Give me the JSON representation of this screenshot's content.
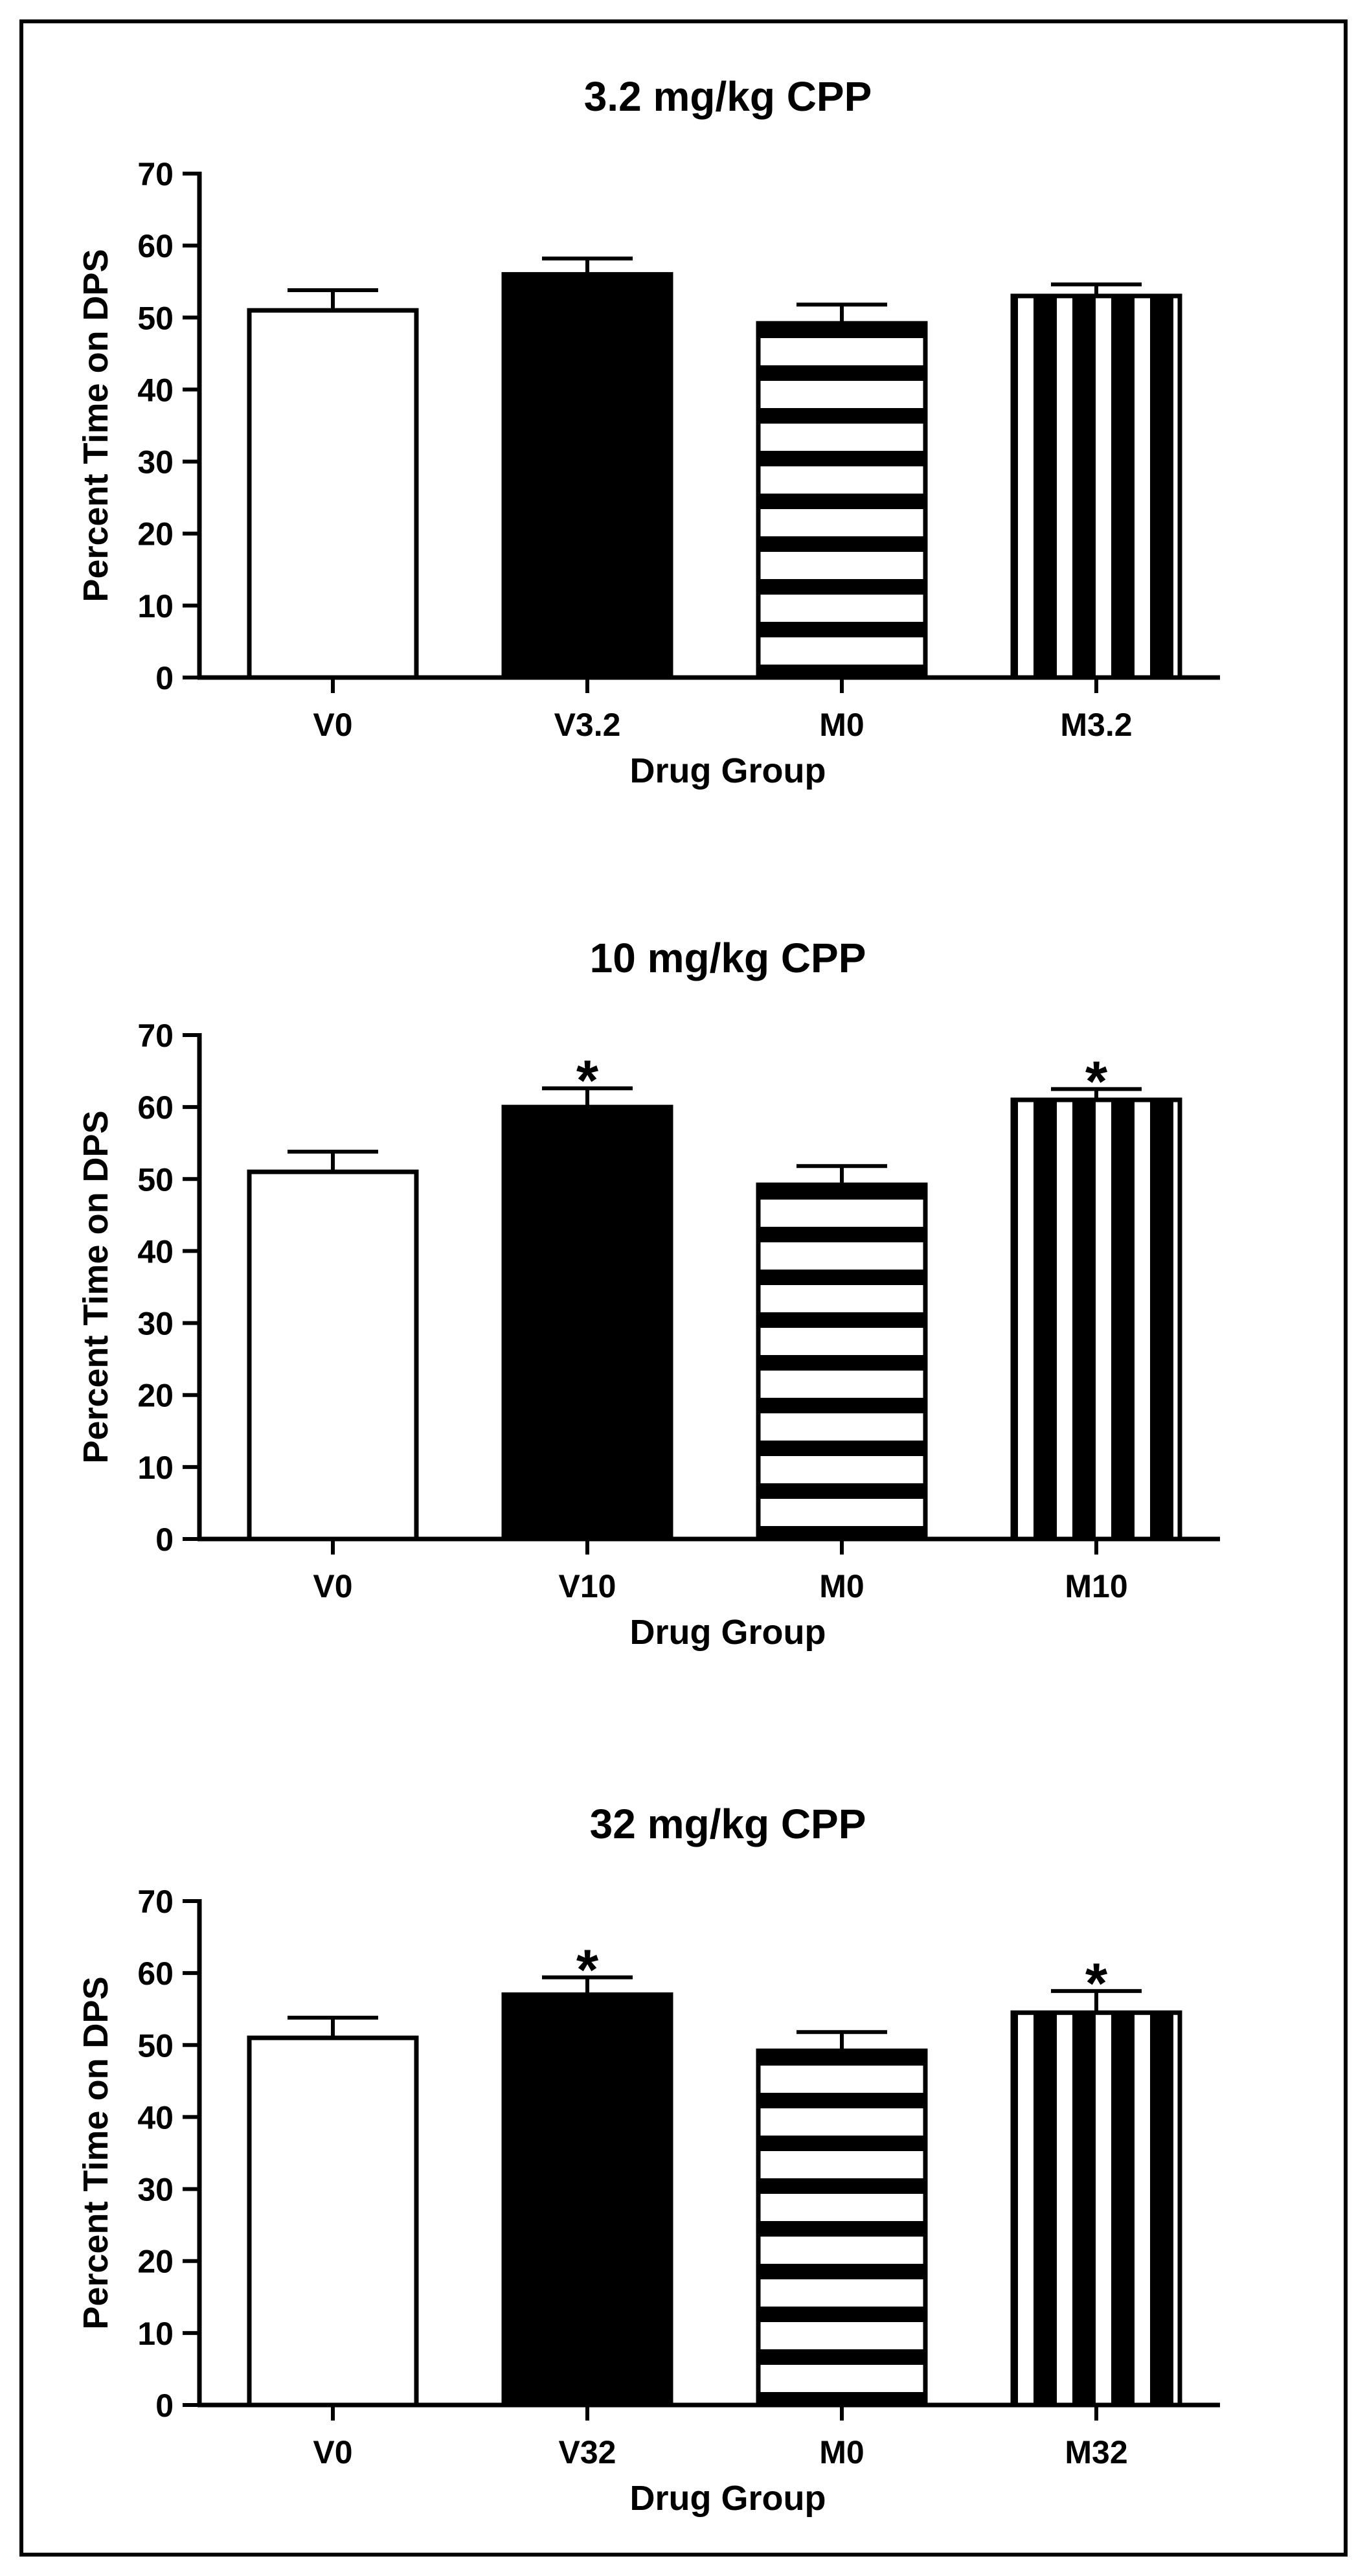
{
  "chart_data": [
    {
      "type": "bar",
      "title": "3.2 mg/kg CPP",
      "xlabel": "Drug Group",
      "ylabel": "Percent Time on DPS",
      "ylim": [
        0,
        70
      ],
      "yticks": [
        0,
        10,
        20,
        30,
        40,
        50,
        60,
        70
      ],
      "categories": [
        "V0",
        "V3.2",
        "M0",
        "M3.2"
      ],
      "values": [
        51,
        56,
        49.2,
        53
      ],
      "errors": [
        2.8,
        2.2,
        2.6,
        1.6
      ],
      "significant": [
        false,
        false,
        false,
        false
      ],
      "fills": [
        "white",
        "black",
        "horizontal-stripes",
        "vertical-stripes"
      ],
      "significance_symbol": "*"
    },
    {
      "type": "bar",
      "title": "10 mg/kg CPP",
      "xlabel": "Drug Group",
      "ylabel": "Percent Time on DPS",
      "ylim": [
        0,
        70
      ],
      "yticks": [
        0,
        10,
        20,
        30,
        40,
        50,
        60,
        70
      ],
      "categories": [
        "V0",
        "V10",
        "M0",
        "M10"
      ],
      "values": [
        51,
        60,
        49.2,
        61
      ],
      "errors": [
        2.8,
        2.6,
        2.6,
        1.5
      ],
      "significant": [
        false,
        true,
        false,
        true
      ],
      "fills": [
        "white",
        "black",
        "horizontal-stripes",
        "vertical-stripes"
      ],
      "significance_symbol": "*"
    },
    {
      "type": "bar",
      "title": "32 mg/kg CPP",
      "xlabel": "Drug Group",
      "ylabel": "Percent Time on DPS",
      "ylim": [
        0,
        70
      ],
      "yticks": [
        0,
        10,
        20,
        30,
        40,
        50,
        60,
        70
      ],
      "categories": [
        "V0",
        "V32",
        "M0",
        "M32"
      ],
      "values": [
        51,
        57,
        49.2,
        54.5
      ],
      "errors": [
        2.8,
        2.4,
        2.6,
        3
      ],
      "significant": [
        false,
        true,
        false,
        true
      ],
      "fills": [
        "white",
        "black",
        "horizontal-stripes",
        "vertical-stripes"
      ],
      "significance_symbol": "*"
    }
  ],
  "colors": {
    "ink": "#000000",
    "paper": "#ffffff"
  }
}
